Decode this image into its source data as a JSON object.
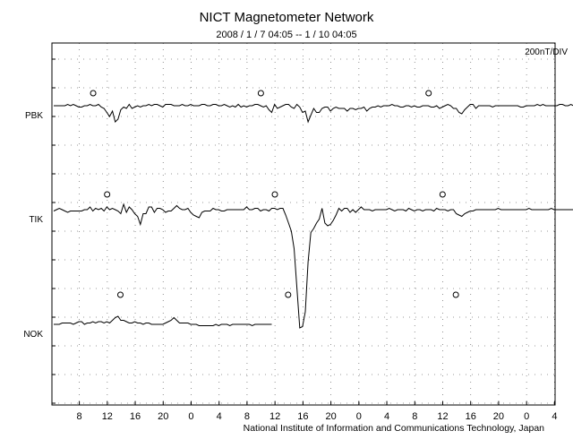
{
  "chart_data": {
    "type": "line",
    "title": "NICT Magnetometer Network",
    "subtitle": "2008 / 1 / 7   04:05 --  1 / 10   04:05",
    "scale_label": "200nT/DIV",
    "credit": "National Institute of Information and Communications Technology, Japan",
    "xlabel": "",
    "ylabel": "",
    "x_tick_labels": [
      "8",
      "12",
      "16",
      "20",
      "0",
      "4",
      "8",
      "12",
      "16",
      "20",
      "0",
      "4",
      "8",
      "12",
      "16",
      "20",
      "0",
      "4"
    ],
    "grid": true,
    "legend": "none",
    "series": [
      {
        "name": "PBK",
        "color": "#000000",
        "values": [
          0,
          0,
          0,
          0,
          0,
          -1,
          0,
          -1,
          0,
          1,
          1,
          0,
          0,
          -1,
          0,
          0,
          -1,
          1,
          2,
          5,
          8,
          4,
          12,
          10,
          3,
          1,
          2,
          -1,
          2,
          1,
          0,
          1,
          0,
          0,
          -1,
          0,
          -1,
          -1,
          0,
          1,
          -1,
          -1,
          -1,
          0,
          0,
          0,
          -1,
          0,
          0,
          -1,
          0,
          0,
          0,
          -1,
          -1,
          0,
          0,
          -1,
          -1,
          0,
          0,
          -1,
          0,
          1,
          0,
          1,
          -1,
          1,
          0,
          1,
          0,
          0,
          -1,
          -1,
          0,
          1,
          0,
          3,
          5,
          -1,
          2,
          1,
          0,
          -1,
          -1,
          1,
          2,
          -1,
          1,
          5,
          4,
          12,
          7,
          2,
          5,
          5,
          2,
          1,
          1,
          4,
          2,
          1,
          2,
          2,
          2,
          4,
          2,
          2,
          3,
          2,
          2,
          1,
          4,
          2,
          1,
          1,
          0,
          1,
          0,
          0,
          0,
          -1,
          0,
          0,
          1,
          1,
          0,
          0,
          1,
          0,
          1,
          1,
          0,
          0,
          0,
          1,
          1,
          0,
          2,
          1,
          0,
          -1,
          0,
          2,
          2,
          5,
          6,
          3,
          1,
          -1,
          -1,
          2,
          0,
          0,
          0,
          0,
          0,
          1,
          0,
          0,
          0,
          0,
          0,
          0,
          0,
          0,
          0,
          1,
          1,
          0,
          0,
          0,
          0,
          -1,
          0,
          -1,
          0,
          0,
          0,
          0,
          0,
          -1,
          -1,
          0,
          0,
          -1,
          0,
          0,
          -1,
          0,
          -1
        ],
        "markers": [
          12.5,
          13.1,
          12.9
        ]
      },
      {
        "name": "TIK",
        "color": "#000000",
        "values": [
          1,
          0,
          -1,
          0,
          1,
          2,
          1,
          1,
          1,
          1,
          1,
          0,
          0,
          -2,
          1,
          -1,
          0,
          -1,
          1,
          -2,
          0,
          -1,
          0,
          1,
          3,
          -4,
          2,
          -2,
          0,
          3,
          5,
          11,
          3,
          3,
          -2,
          -2,
          2,
          -1,
          -1,
          0,
          2,
          1,
          1,
          -1,
          -3,
          -1,
          0,
          0,
          -1,
          2,
          4,
          5,
          6,
          2,
          1,
          1,
          1,
          -1,
          0,
          0,
          1,
          1,
          0,
          0,
          0,
          0,
          0,
          0,
          0,
          -2,
          0,
          0,
          -1,
          -1,
          1,
          0,
          0,
          1,
          -1,
          -1,
          0,
          -1,
          -1,
          4,
          10,
          16,
          29,
          58,
          88,
          87,
          76,
          39,
          17,
          14,
          10,
          7,
          -1,
          10,
          12,
          11,
          8,
          4,
          -1,
          1,
          -1,
          -1,
          2,
          0,
          2,
          0,
          -2,
          0,
          0,
          0,
          1,
          0,
          0,
          0,
          0,
          0,
          -1,
          0,
          1,
          0,
          0,
          0,
          1,
          -1,
          0,
          1,
          0,
          0,
          1,
          0,
          0,
          0,
          1,
          -1,
          0,
          0,
          0,
          1,
          0,
          0,
          3,
          4,
          5,
          3,
          2,
          1,
          1,
          0,
          0,
          0,
          0,
          0,
          0,
          0,
          0,
          -1,
          0,
          0,
          0,
          0,
          0,
          0,
          0,
          0,
          0,
          0,
          -1,
          0,
          0,
          0,
          0,
          0,
          0,
          0,
          -1,
          0,
          0,
          0,
          0,
          0,
          0,
          0,
          0,
          0,
          0,
          0
        ],
        "markers": [
          12.5,
          13.1,
          12.9
        ]
      },
      {
        "name": "NOK",
        "color": "#000000",
        "values": [
          0,
          0,
          0,
          -1,
          -1,
          -1,
          -1,
          0,
          -1,
          -2,
          -2,
          0,
          -1,
          -1,
          -2,
          -1,
          -2,
          -2,
          -1,
          -2,
          -1,
          -3,
          -5,
          -6,
          -3,
          -3,
          -2,
          -1,
          -1,
          -2,
          -1,
          -1,
          0,
          -1,
          -1,
          0,
          0,
          0,
          0,
          0,
          -1,
          -2,
          -3,
          -5,
          -3,
          -1,
          -1,
          -1,
          -1,
          0,
          0,
          0,
          1,
          1,
          1,
          1,
          1,
          1,
          0,
          1,
          0,
          0,
          0,
          1,
          0,
          0,
          0,
          0,
          0,
          0,
          0,
          1,
          0,
          0,
          0,
          0,
          0,
          0,
          0
        ],
        "markers": [
          12.5,
          13.1,
          12.9
        ]
      }
    ]
  }
}
